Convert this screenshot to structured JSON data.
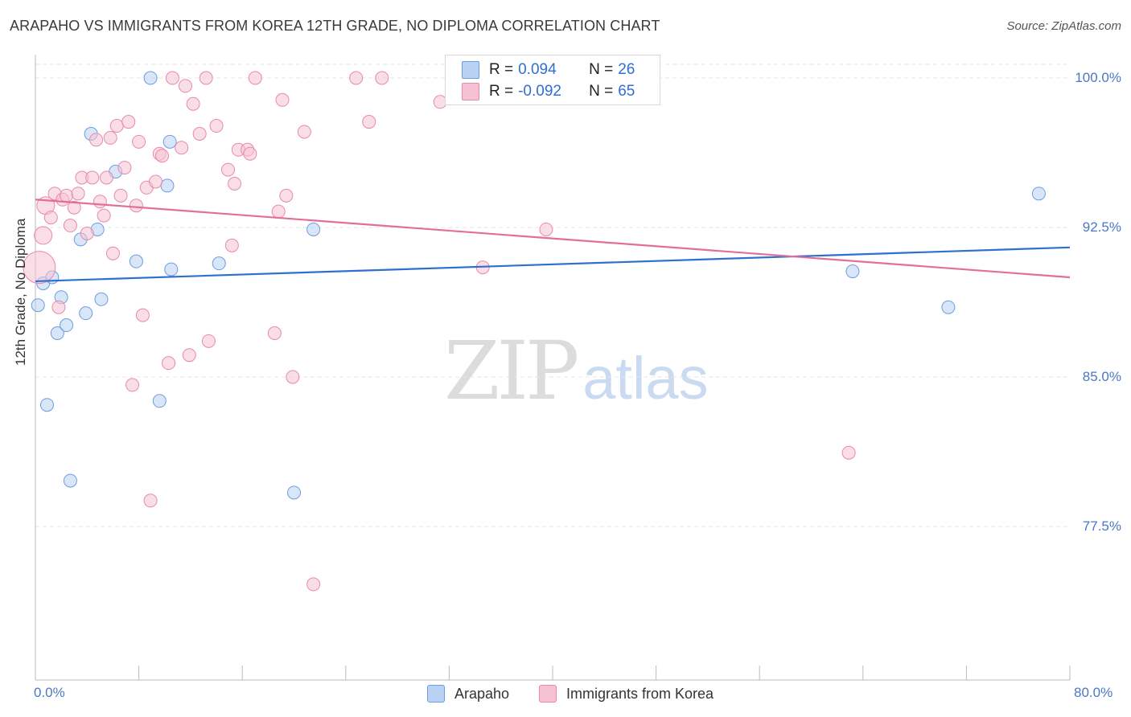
{
  "chart_data": {
    "type": "scatter",
    "title": "ARAPAHO VS IMMIGRANTS FROM KOREA 12TH GRADE, NO DIPLOMA CORRELATION CHART",
    "source": "Source: ZipAtlas.com",
    "ylabel": "12th Grade, No Diploma",
    "xlabel": "",
    "xlim": [
      0,
      80
    ],
    "ylim": [
      70.0,
      101.0
    ],
    "y_ticks": [
      {
        "value": 100.0,
        "label": "100.0%"
      },
      {
        "value": 92.5,
        "label": "92.5%"
      },
      {
        "value": 85.0,
        "label": "85.0%"
      },
      {
        "value": 77.5,
        "label": "77.5%"
      }
    ],
    "x_tick_labels": {
      "left": "0.0%",
      "right": "80.0%"
    },
    "grid": true,
    "watermark": {
      "zip": "ZIP",
      "atlas": "atlas"
    },
    "stats": [
      {
        "series": "Arapaho",
        "r_label": "R =",
        "r": "0.094",
        "n_label": "N =",
        "n": "26"
      },
      {
        "series": "Immigrants from Korea",
        "r_label": "R =",
        "r": "-0.092",
        "n_label": "N =",
        "n": "65"
      }
    ],
    "series": [
      {
        "name": "Arapaho",
        "color": "#6b9de0",
        "fill": "#b9d1f3",
        "trend": {
          "x0": 0,
          "y0": 89.8,
          "x1": 80,
          "y1": 91.5,
          "color": "#2f6fd0"
        },
        "points": [
          [
            0.2,
            88.6
          ],
          [
            0.6,
            89.7
          ],
          [
            0.9,
            83.6
          ],
          [
            1.3,
            90.0
          ],
          [
            1.7,
            87.2
          ],
          [
            2.0,
            89.0
          ],
          [
            2.4,
            87.6
          ],
          [
            2.7,
            79.8
          ],
          [
            3.5,
            91.9
          ],
          [
            3.9,
            88.2
          ],
          [
            4.3,
            97.2
          ],
          [
            4.8,
            92.4
          ],
          [
            5.1,
            88.9
          ],
          [
            6.2,
            95.3
          ],
          [
            7.8,
            90.8
          ],
          [
            8.9,
            100.0
          ],
          [
            9.6,
            83.8
          ],
          [
            10.2,
            94.6
          ],
          [
            10.4,
            96.8
          ],
          [
            10.5,
            90.4
          ],
          [
            14.2,
            90.7
          ],
          [
            20.0,
            79.2
          ],
          [
            21.5,
            92.4
          ],
          [
            63.2,
            90.3
          ],
          [
            70.6,
            88.5
          ],
          [
            77.6,
            94.2
          ]
        ]
      },
      {
        "name": "Immigrants from Korea",
        "color": "#e889a8",
        "fill": "#f6c2d3",
        "trend": {
          "x0": 0,
          "y0": 93.9,
          "x1": 80,
          "y1": 90.0,
          "color": "#e36f98"
        },
        "points": [
          [
            0.3,
            90.5
          ],
          [
            0.6,
            92.1
          ],
          [
            0.8,
            93.6
          ],
          [
            1.2,
            93.0
          ],
          [
            1.5,
            94.2
          ],
          [
            1.8,
            88.5
          ],
          [
            2.1,
            93.9
          ],
          [
            2.4,
            94.1
          ],
          [
            2.7,
            92.6
          ],
          [
            3.0,
            93.5
          ],
          [
            3.3,
            94.2
          ],
          [
            3.6,
            95.0
          ],
          [
            4.0,
            92.2
          ],
          [
            4.4,
            95.0
          ],
          [
            4.7,
            96.9
          ],
          [
            5.0,
            93.8
          ],
          [
            5.3,
            93.1
          ],
          [
            5.5,
            95.0
          ],
          [
            5.8,
            97.0
          ],
          [
            6.0,
            91.2
          ],
          [
            6.3,
            97.6
          ],
          [
            6.6,
            94.1
          ],
          [
            6.9,
            95.5
          ],
          [
            7.2,
            97.8
          ],
          [
            7.5,
            84.6
          ],
          [
            7.8,
            93.6
          ],
          [
            8.0,
            96.8
          ],
          [
            8.3,
            88.1
          ],
          [
            8.6,
            94.5
          ],
          [
            8.9,
            78.8
          ],
          [
            9.3,
            94.8
          ],
          [
            9.6,
            96.2
          ],
          [
            9.8,
            96.1
          ],
          [
            10.3,
            85.7
          ],
          [
            10.6,
            100.0
          ],
          [
            11.3,
            96.5
          ],
          [
            11.6,
            99.6
          ],
          [
            11.9,
            86.1
          ],
          [
            12.2,
            98.7
          ],
          [
            12.7,
            97.2
          ],
          [
            13.2,
            100.0
          ],
          [
            13.4,
            86.8
          ],
          [
            14.0,
            97.6
          ],
          [
            14.9,
            95.4
          ],
          [
            15.2,
            91.6
          ],
          [
            15.4,
            94.7
          ],
          [
            15.7,
            96.4
          ],
          [
            16.4,
            96.4
          ],
          [
            16.6,
            96.2
          ],
          [
            17.0,
            100.0
          ],
          [
            18.5,
            87.2
          ],
          [
            18.8,
            93.3
          ],
          [
            19.1,
            98.9
          ],
          [
            19.4,
            94.1
          ],
          [
            19.9,
            85.0
          ],
          [
            20.8,
            97.3
          ],
          [
            21.5,
            74.6
          ],
          [
            24.8,
            100.0
          ],
          [
            25.8,
            97.8
          ],
          [
            26.8,
            100.0
          ],
          [
            31.3,
            98.8
          ],
          [
            34.6,
            90.5
          ],
          [
            36.1,
            100.0
          ],
          [
            39.5,
            92.4
          ],
          [
            62.9,
            81.2
          ]
        ]
      }
    ]
  }
}
